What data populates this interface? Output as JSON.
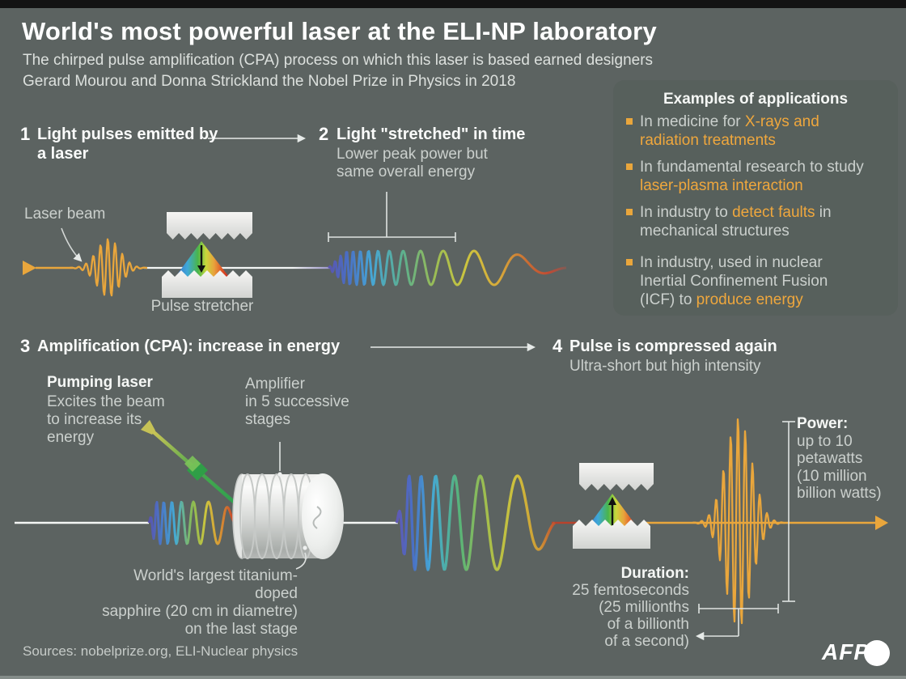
{
  "header": {
    "title": "World's most powerful laser at the ELI-NP laboratory",
    "subtitle_line1": "The chirped pulse amplification (CPA) process on which this laser is based earned designers",
    "subtitle_line2": "Gerard Mourou and Donna Strickland the Nobel Prize in Physics in 2018"
  },
  "applications": {
    "title": "Examples of applications",
    "items": [
      {
        "pre": "In medicine for ",
        "highlight": "X-rays and radiation treatments",
        "post": ""
      },
      {
        "pre": "In fundamental research to study ",
        "highlight": "laser-plasma interaction",
        "post": ""
      },
      {
        "pre": "In industry to ",
        "highlight": "detect faults",
        "post": " in mechanical structures"
      },
      {
        "pre": "In industry, used in nuclear Inertial Confinement Fusion (ICF) to ",
        "highlight": "produce energy",
        "post": ""
      }
    ]
  },
  "steps": {
    "step1": {
      "number": "1",
      "line1": "Light pulses emitted by",
      "line2": "a laser"
    },
    "step2": {
      "number": "2",
      "title": "Light \"stretched\" in time",
      "sub1": "Lower peak power but",
      "sub2": "same overall energy"
    },
    "step3": {
      "number": "3",
      "title": "Amplification (CPA): increase in energy"
    },
    "step4": {
      "number": "4",
      "title": "Pulse is compressed again",
      "sub": "Ultra-short but high intensity"
    }
  },
  "labels": {
    "laser_beam": "Laser beam",
    "pulse_stretcher": "Pulse stretcher",
    "pumping_title": "Pumping laser",
    "pumping_line1": "Excites the beam",
    "pumping_line2": "to increase its",
    "pumping_line3": "energy",
    "amplifier_line1": "Amplifier",
    "amplifier_line2": "in 5 successive",
    "amplifier_line3": "stages",
    "sapphire_line1": "World's largest titanium-doped",
    "sapphire_line2": "sapphire (20 cm in diametre)",
    "sapphire_line3": "on the last stage",
    "power_title": "Power:",
    "power_line1": "up to 10",
    "power_line2": "petawatts",
    "power_line3": "(10 million",
    "power_line4": "billion watts)",
    "duration_title": "Duration:",
    "duration_line1": "25 femtoseconds",
    "duration_line2": "(25 millionths",
    "duration_line3": "of a  billionth",
    "duration_line4": "of  a second)"
  },
  "footer": {
    "sources": "Sources: nobelprize.org, ELI-Nuclear physics",
    "logo_text": "AFP"
  },
  "colors": {
    "background": "#5C6361",
    "panel": "#57605C",
    "accent_orange": "#E9A63C",
    "text_white": "#FFFFFF",
    "text_gray": "#CBD0CD"
  }
}
